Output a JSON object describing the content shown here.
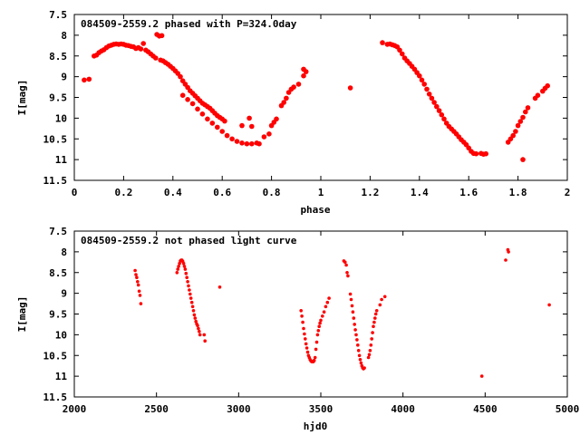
{
  "colors": {
    "series": "#ff0000",
    "frame": "#000000",
    "background": "#ffffff"
  },
  "chart_data": [
    {
      "type": "scatter",
      "title": "084509-2559.2 phased with P=324.0day",
      "xlabel": "phase",
      "ylabel": "I[mag]",
      "xlim": [
        0,
        2
      ],
      "ylim": [
        7.5,
        11.5
      ],
      "y_inverted": true,
      "grid": false,
      "xticks": [
        "0",
        "0.2",
        "0.4",
        "0.6",
        "0.8",
        "1",
        "1.2",
        "1.4",
        "1.6",
        "1.8",
        "2"
      ],
      "yticks": [
        "7.5",
        "8",
        "8.5",
        "9",
        "9.5",
        "10",
        "10.5",
        "11",
        "11.5"
      ],
      "series": [
        {
          "points": [
            [
              0.04,
              9.08
            ],
            [
              0.06,
              9.06
            ],
            [
              0.08,
              8.5
            ],
            [
              0.09,
              8.48
            ],
            [
              0.1,
              8.42
            ],
            [
              0.11,
              8.38
            ],
            [
              0.12,
              8.35
            ],
            [
              0.13,
              8.3
            ],
            [
              0.14,
              8.26
            ],
            [
              0.15,
              8.24
            ],
            [
              0.16,
              8.22
            ],
            [
              0.17,
              8.21
            ],
            [
              0.18,
              8.22
            ],
            [
              0.19,
              8.21
            ],
            [
              0.2,
              8.22
            ],
            [
              0.21,
              8.24
            ],
            [
              0.22,
              8.25
            ],
            [
              0.23,
              8.27
            ],
            [
              0.24,
              8.28
            ],
            [
              0.25,
              8.32
            ],
            [
              0.26,
              8.3
            ],
            [
              0.27,
              8.33
            ],
            [
              0.28,
              8.2
            ],
            [
              0.29,
              8.36
            ],
            [
              0.3,
              8.4
            ],
            [
              0.31,
              8.45
            ],
            [
              0.32,
              8.5
            ],
            [
              0.33,
              8.55
            ],
            [
              0.335,
              7.98
            ],
            [
              0.345,
              8.02
            ],
            [
              0.355,
              8.01
            ],
            [
              0.35,
              8.6
            ],
            [
              0.36,
              8.62
            ],
            [
              0.37,
              8.66
            ],
            [
              0.38,
              8.7
            ],
            [
              0.39,
              8.75
            ],
            [
              0.4,
              8.8
            ],
            [
              0.41,
              8.86
            ],
            [
              0.42,
              8.92
            ],
            [
              0.43,
              9.0
            ],
            [
              0.44,
              9.1
            ],
            [
              0.45,
              9.18
            ],
            [
              0.46,
              9.26
            ],
            [
              0.47,
              9.34
            ],
            [
              0.48,
              9.4
            ],
            [
              0.49,
              9.46
            ],
            [
              0.5,
              9.52
            ],
            [
              0.51,
              9.58
            ],
            [
              0.52,
              9.64
            ],
            [
              0.53,
              9.68
            ],
            [
              0.54,
              9.72
            ],
            [
              0.55,
              9.76
            ],
            [
              0.56,
              9.82
            ],
            [
              0.57,
              9.88
            ],
            [
              0.58,
              9.94
            ],
            [
              0.59,
              9.98
            ],
            [
              0.6,
              10.02
            ],
            [
              0.61,
              10.07
            ],
            [
              0.44,
              9.45
            ],
            [
              0.46,
              9.55
            ],
            [
              0.48,
              9.65
            ],
            [
              0.5,
              9.78
            ],
            [
              0.52,
              9.9
            ],
            [
              0.54,
              10.02
            ],
            [
              0.56,
              10.12
            ],
            [
              0.58,
              10.22
            ],
            [
              0.6,
              10.32
            ],
            [
              0.62,
              10.42
            ],
            [
              0.64,
              10.5
            ],
            [
              0.66,
              10.56
            ],
            [
              0.68,
              10.6
            ],
            [
              0.7,
              10.62
            ],
            [
              0.72,
              10.62
            ],
            [
              0.74,
              10.6
            ],
            [
              0.75,
              10.62
            ],
            [
              0.68,
              10.18
            ],
            [
              0.71,
              10.0
            ],
            [
              0.72,
              10.2
            ],
            [
              0.77,
              10.45
            ],
            [
              0.79,
              10.38
            ],
            [
              0.8,
              10.18
            ],
            [
              0.81,
              10.1
            ],
            [
              0.82,
              10.02
            ],
            [
              0.84,
              9.7
            ],
            [
              0.85,
              9.62
            ],
            [
              0.86,
              9.52
            ],
            [
              0.87,
              9.38
            ],
            [
              0.88,
              9.3
            ],
            [
              0.89,
              9.25
            ],
            [
              0.91,
              9.18
            ],
            [
              0.93,
              8.98
            ],
            [
              0.94,
              8.88
            ],
            [
              0.93,
              8.82
            ],
            [
              1.12,
              9.27
            ],
            [
              1.25,
              8.18
            ],
            [
              1.27,
              8.22
            ],
            [
              1.28,
              8.21
            ],
            [
              1.29,
              8.23
            ],
            [
              1.3,
              8.25
            ],
            [
              1.31,
              8.28
            ],
            [
              1.32,
              8.36
            ],
            [
              1.33,
              8.45
            ],
            [
              1.34,
              8.55
            ],
            [
              1.35,
              8.62
            ],
            [
              1.36,
              8.68
            ],
            [
              1.37,
              8.75
            ],
            [
              1.38,
              8.82
            ],
            [
              1.39,
              8.9
            ],
            [
              1.4,
              8.98
            ],
            [
              1.41,
              9.08
            ],
            [
              1.42,
              9.18
            ],
            [
              1.43,
              9.3
            ],
            [
              1.44,
              9.42
            ],
            [
              1.45,
              9.52
            ],
            [
              1.46,
              9.62
            ],
            [
              1.47,
              9.72
            ],
            [
              1.48,
              9.82
            ],
            [
              1.49,
              9.92
            ],
            [
              1.5,
              10.02
            ],
            [
              1.51,
              10.12
            ],
            [
              1.52,
              10.2
            ],
            [
              1.53,
              10.26
            ],
            [
              1.54,
              10.32
            ],
            [
              1.55,
              10.38
            ],
            [
              1.56,
              10.45
            ],
            [
              1.57,
              10.52
            ],
            [
              1.58,
              10.58
            ],
            [
              1.59,
              10.64
            ],
            [
              1.6,
              10.72
            ],
            [
              1.61,
              10.8
            ],
            [
              1.62,
              10.85
            ],
            [
              1.63,
              10.86
            ],
            [
              1.65,
              10.85
            ],
            [
              1.66,
              10.87
            ],
            [
              1.67,
              10.86
            ],
            [
              1.76,
              10.58
            ],
            [
              1.77,
              10.5
            ],
            [
              1.78,
              10.42
            ],
            [
              1.79,
              10.32
            ],
            [
              1.8,
              10.18
            ],
            [
              1.81,
              10.08
            ],
            [
              1.82,
              9.98
            ],
            [
              1.83,
              9.85
            ],
            [
              1.84,
              9.75
            ],
            [
              1.82,
              11.0
            ],
            [
              1.87,
              9.52
            ],
            [
              1.88,
              9.45
            ],
            [
              1.9,
              9.35
            ],
            [
              1.91,
              9.28
            ],
            [
              1.92,
              9.22
            ]
          ]
        }
      ]
    },
    {
      "type": "scatter",
      "title": "084509-2559.2 not phased light curve",
      "xlabel": "hjd0",
      "ylabel": "I[mag]",
      "xlim": [
        2000,
        5000
      ],
      "ylim": [
        7.5,
        11.5
      ],
      "y_inverted": true,
      "grid": false,
      "xticks": [
        "2000",
        "2500",
        "3000",
        "3500",
        "4000",
        "4500",
        "5000"
      ],
      "yticks": [
        "7.5",
        "8",
        "8.5",
        "9",
        "9.5",
        "10",
        "10.5",
        "11",
        "11.5"
      ],
      "series": [
        {
          "points": [
            [
              2370,
              8.45
            ],
            [
              2375,
              8.55
            ],
            [
              2380,
              8.62
            ],
            [
              2385,
              8.72
            ],
            [
              2390,
              8.8
            ],
            [
              2395,
              8.95
            ],
            [
              2400,
              9.05
            ],
            [
              2405,
              9.25
            ],
            [
              2625,
              8.5
            ],
            [
              2630,
              8.42
            ],
            [
              2635,
              8.35
            ],
            [
              2640,
              8.28
            ],
            [
              2645,
              8.22
            ],
            [
              2650,
              8.2
            ],
            [
              2655,
              8.2
            ],
            [
              2660,
              8.23
            ],
            [
              2665,
              8.28
            ],
            [
              2670,
              8.35
            ],
            [
              2675,
              8.42
            ],
            [
              2680,
              8.52
            ],
            [
              2685,
              8.62
            ],
            [
              2690,
              8.72
            ],
            [
              2695,
              8.82
            ],
            [
              2700,
              8.92
            ],
            [
              2705,
              9.02
            ],
            [
              2710,
              9.12
            ],
            [
              2715,
              9.22
            ],
            [
              2720,
              9.32
            ],
            [
              2725,
              9.42
            ],
            [
              2730,
              9.52
            ],
            [
              2735,
              9.6
            ],
            [
              2740,
              9.68
            ],
            [
              2745,
              9.74
            ],
            [
              2750,
              9.78
            ],
            [
              2755,
              9.85
            ],
            [
              2760,
              9.92
            ],
            [
              2765,
              10.0
            ],
            [
              2790,
              10.0
            ],
            [
              2795,
              10.15
            ],
            [
              2885,
              8.85
            ],
            [
              3380,
              9.42
            ],
            [
              3385,
              9.55
            ],
            [
              3390,
              9.7
            ],
            [
              3395,
              9.85
            ],
            [
              3400,
              9.98
            ],
            [
              3405,
              10.1
            ],
            [
              3410,
              10.22
            ],
            [
              3415,
              10.32
            ],
            [
              3420,
              10.42
            ],
            [
              3425,
              10.5
            ],
            [
              3430,
              10.55
            ],
            [
              3435,
              10.6
            ],
            [
              3440,
              10.63
            ],
            [
              3445,
              10.65
            ],
            [
              3450,
              10.65
            ],
            [
              3455,
              10.65
            ],
            [
              3460,
              10.62
            ],
            [
              3465,
              10.55
            ],
            [
              3470,
              10.35
            ],
            [
              3475,
              10.18
            ],
            [
              3480,
              10.0
            ],
            [
              3485,
              9.9
            ],
            [
              3490,
              9.8
            ],
            [
              3495,
              9.72
            ],
            [
              3500,
              9.65
            ],
            [
              3510,
              9.55
            ],
            [
              3520,
              9.45
            ],
            [
              3530,
              9.32
            ],
            [
              3540,
              9.22
            ],
            [
              3550,
              9.12
            ],
            [
              3640,
              8.22
            ],
            [
              3648,
              8.25
            ],
            [
              3655,
              8.32
            ],
            [
              3660,
              8.5
            ],
            [
              3665,
              8.58
            ],
            [
              3680,
              9.02
            ],
            [
              3685,
              9.15
            ],
            [
              3690,
              9.3
            ],
            [
              3695,
              9.45
            ],
            [
              3700,
              9.6
            ],
            [
              3705,
              9.75
            ],
            [
              3710,
              9.88
            ],
            [
              3715,
              10.0
            ],
            [
              3720,
              10.12
            ],
            [
              3725,
              10.25
            ],
            [
              3730,
              10.38
            ],
            [
              3735,
              10.5
            ],
            [
              3740,
              10.6
            ],
            [
              3745,
              10.68
            ],
            [
              3750,
              10.75
            ],
            [
              3755,
              10.8
            ],
            [
              3760,
              10.82
            ],
            [
              3765,
              10.8
            ],
            [
              3790,
              10.55
            ],
            [
              3795,
              10.48
            ],
            [
              3800,
              10.38
            ],
            [
              3805,
              10.25
            ],
            [
              3810,
              10.1
            ],
            [
              3815,
              9.95
            ],
            [
              3820,
              9.8
            ],
            [
              3825,
              9.7
            ],
            [
              3830,
              9.6
            ],
            [
              3835,
              9.5
            ],
            [
              3840,
              9.42
            ],
            [
              3860,
              9.28
            ],
            [
              3870,
              9.15
            ],
            [
              3890,
              9.08
            ],
            [
              4480,
              11.0
            ],
            [
              4625,
              8.2
            ],
            [
              4638,
              7.95
            ],
            [
              4642,
              8.0
            ],
            [
              4890,
              9.28
            ]
          ]
        }
      ]
    }
  ]
}
